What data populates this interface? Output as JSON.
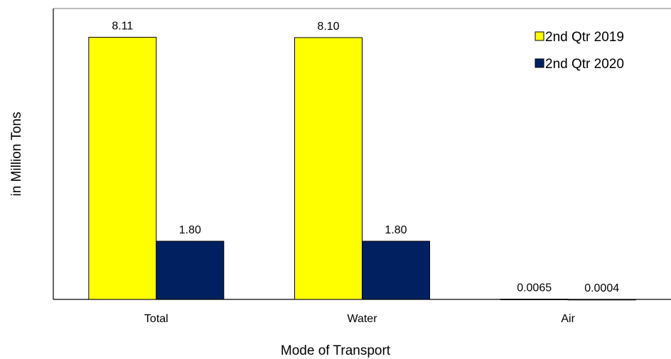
{
  "chart_data": {
    "type": "bar",
    "categories": [
      "Total",
      "Water",
      "Air"
    ],
    "series": [
      {
        "name": "2nd Qtr 2019",
        "values": [
          8.11,
          8.1,
          0.0065
        ],
        "labels": [
          "8.11",
          "8.10",
          "0.0065"
        ],
        "color": "#FFFF00"
      },
      {
        "name": "2nd Qtr 2020",
        "values": [
          1.8,
          1.8,
          0.0004
        ],
        "labels": [
          "1.80",
          "1.80",
          "0.0004"
        ],
        "color": "#002060"
      }
    ],
    "title": "",
    "xlabel": "Mode of Transport",
    "ylabel": "in Million Tons",
    "ylim": [
      0,
      9
    ],
    "grid": false,
    "legend": "top-right"
  }
}
